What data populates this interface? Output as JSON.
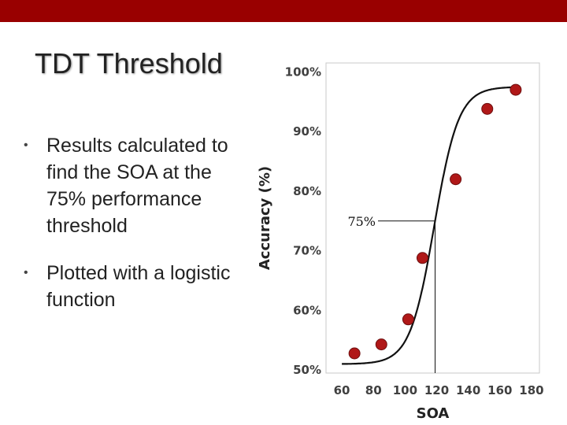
{
  "slide": {
    "title": "TDT Threshold",
    "bullets": [
      "Results calculated to find the SOA at the 75% performance threshold",
      "Plotted with a logistic function"
    ],
    "bullet_marker": "•"
  },
  "colors": {
    "top_bar": "#990000",
    "marker": "#b01818",
    "curve": "#111111"
  },
  "chart_data": {
    "type": "scatter",
    "xlabel": "SOA",
    "ylabel": "Accuracy (%)",
    "xlim": [
      50,
      185
    ],
    "ylim": [
      49.5,
      101.5
    ],
    "x_ticks": [
      60,
      80,
      100,
      120,
      140,
      160,
      180
    ],
    "y_ticks": [
      50,
      60,
      70,
      80,
      90,
      100
    ],
    "y_tick_labels": [
      "50%",
      "60%",
      "70%",
      "80%",
      "90%",
      "100%"
    ],
    "grid": false,
    "series": [
      {
        "points": [
          {
            "x": 68,
            "y": 52.8
          },
          {
            "x": 85,
            "y": 54.3
          },
          {
            "x": 102,
            "y": 58.5
          },
          {
            "x": 111,
            "y": 68.8
          },
          {
            "x": 132,
            "y": 82.0
          },
          {
            "x": 152,
            "y": 93.8
          },
          {
            "x": 170,
            "y": 97.0
          }
        ]
      }
    ],
    "fit": {
      "type": "logistic",
      "lower": 51.0,
      "upper": 97.5,
      "midpoint": 118.5,
      "slope": 0.13,
      "x_range": [
        60,
        173
      ]
    },
    "threshold": {
      "label": "75%",
      "x": 119,
      "y": 75
    }
  }
}
